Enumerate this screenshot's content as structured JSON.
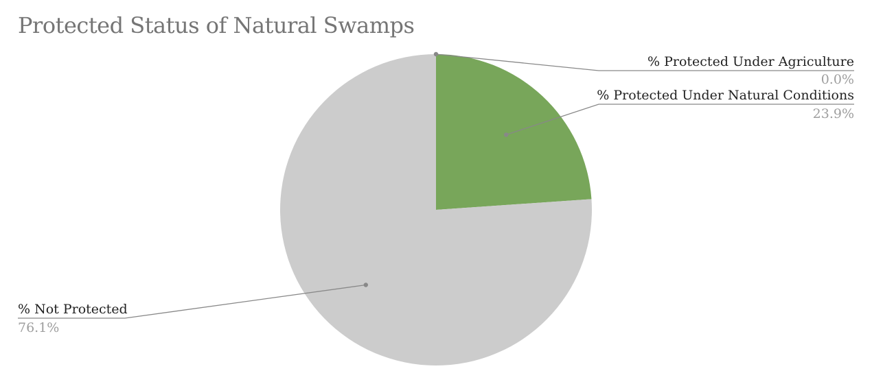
{
  "chart_data": {
    "type": "pie",
    "title": "Protected Status of Natural Swamps",
    "slices": [
      {
        "label": "% Protected Under Agriculture",
        "value": 0.0,
        "value_label": "0.0%",
        "color": "#6aa84f"
      },
      {
        "label": "% Protected Under Natural Conditions",
        "value": 23.9,
        "value_label": "23.9%",
        "color": "#78a65a"
      },
      {
        "label": "% Not Protected",
        "value": 76.1,
        "value_label": "76.1%",
        "color": "#cccccc"
      }
    ],
    "start_angle": "12 o'clock",
    "direction": "clockwise",
    "label_style": "callout-lines",
    "leader_color": "#888888"
  }
}
